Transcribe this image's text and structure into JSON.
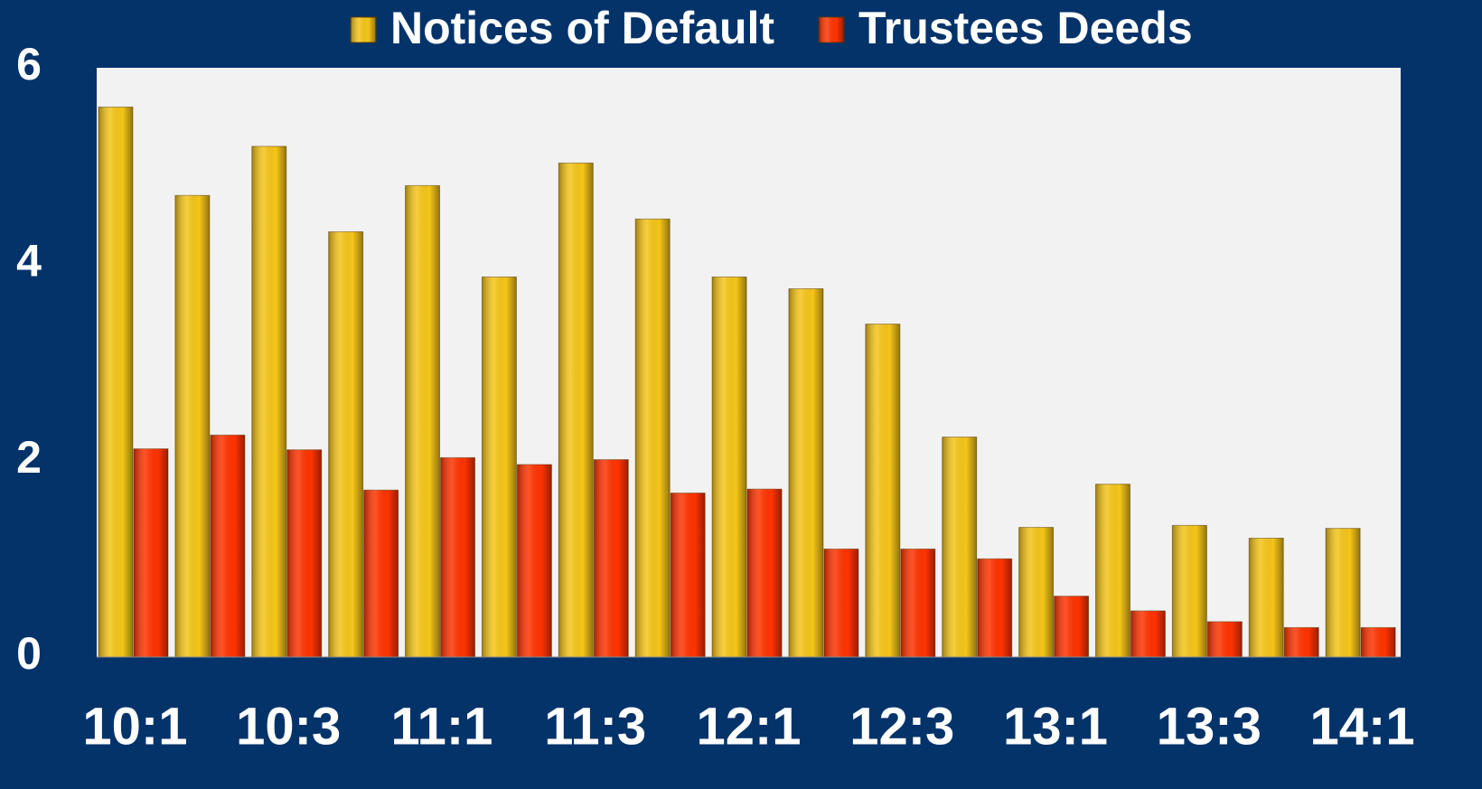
{
  "chart_data": {
    "type": "bar",
    "categories": [
      "10:1",
      null,
      "10:3",
      null,
      "11:1",
      null,
      "11:3",
      null,
      "12:1",
      null,
      "12:3",
      null,
      "13:1",
      null,
      "13:3",
      null,
      "14:1"
    ],
    "series": [
      {
        "name": "Notices of Default",
        "color": "#f5c518",
        "values": [
          5.6,
          4.7,
          5.2,
          4.33,
          4.8,
          3.87,
          5.03,
          4.46,
          3.87,
          3.75,
          3.39,
          2.24,
          1.32,
          1.76,
          1.34,
          1.21,
          1.31
        ]
      },
      {
        "name": "Trustees Deeds",
        "color": "#ff3300",
        "values": [
          2.12,
          2.26,
          2.11,
          1.7,
          2.03,
          1.96,
          2.01,
          1.67,
          1.71,
          1.1,
          1.1,
          1.0,
          0.62,
          0.47,
          0.36,
          0.3,
          0.3
        ]
      }
    ],
    "ylim": [
      0,
      6
    ],
    "yticks": [
      0,
      2,
      4,
      6
    ],
    "legend": "top"
  }
}
